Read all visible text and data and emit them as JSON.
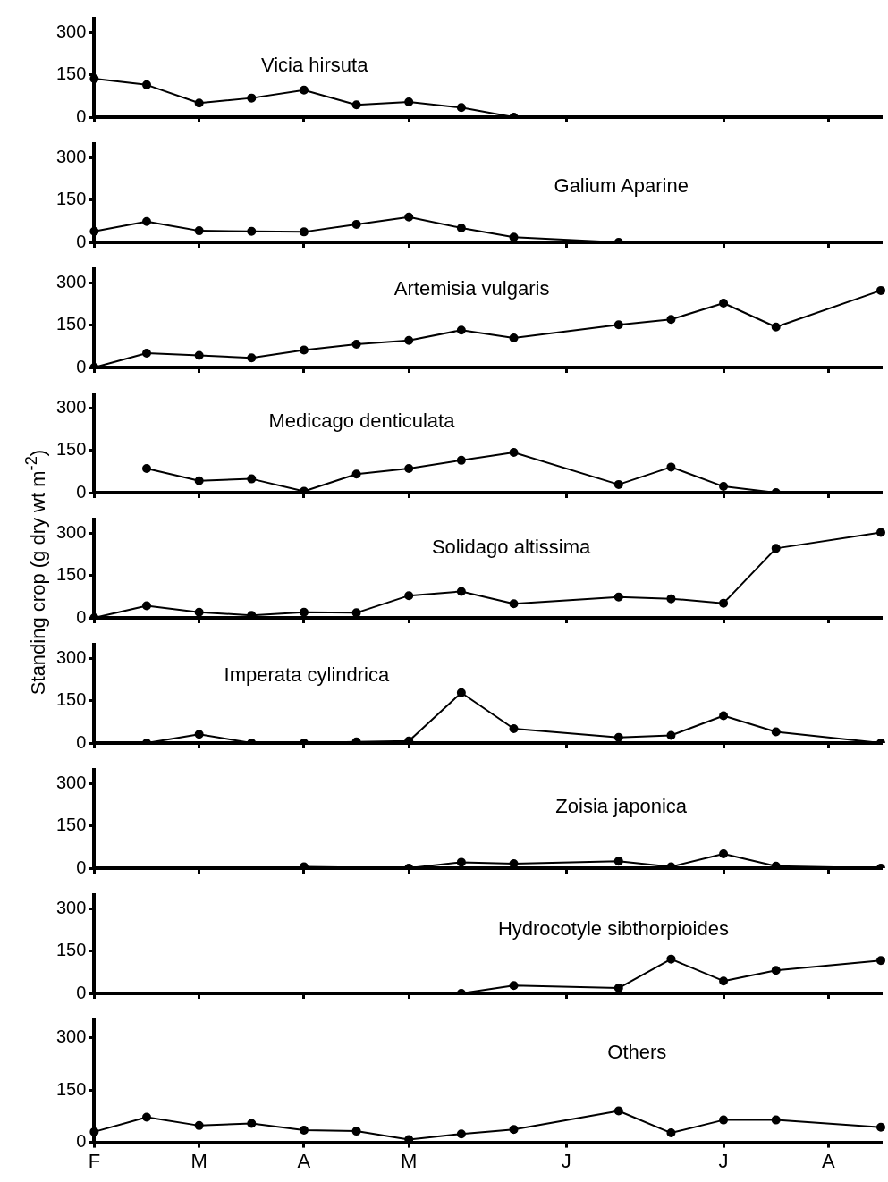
{
  "chart_data": [
    {
      "type": "line",
      "title": "Vicia hirsuta",
      "categories": [
        null,
        null,
        null,
        null,
        null,
        null,
        null,
        null,
        null,
        null,
        null,
        null,
        null,
        null,
        null,
        null
      ],
      "values": [
        137,
        115,
        50,
        68,
        96,
        44,
        54,
        34,
        0,
        null,
        null,
        null,
        null,
        null,
        null,
        null
      ],
      "color": "#000000",
      "marker": "circle",
      "ylim": [
        0,
        350
      ],
      "yticks": [
        0,
        150,
        300
      ],
      "tick_labels": "y"
    },
    {
      "type": "line",
      "title": "Galium Aparine",
      "categories": [
        null,
        null,
        null,
        null,
        null,
        null,
        null,
        null,
        null,
        null,
        null,
        null,
        null,
        null,
        null,
        null
      ],
      "values": [
        39,
        74,
        41,
        39,
        37,
        64,
        90,
        51,
        18,
        null,
        0,
        null,
        null,
        null,
        null,
        null
      ],
      "color": "#000000",
      "marker": "circle",
      "ylim": [
        0,
        350
      ],
      "yticks": [
        0,
        150,
        300
      ],
      "tick_labels": "y"
    },
    {
      "type": "line",
      "title": "Artemisia vulgaris",
      "categories": [
        null,
        null,
        null,
        null,
        null,
        null,
        null,
        null,
        null,
        null,
        null,
        null,
        null,
        null,
        null,
        null
      ],
      "values": [
        0,
        51,
        43,
        34,
        62,
        83,
        96,
        133,
        105,
        null,
        152,
        171,
        229,
        144,
        null,
        274
      ],
      "color": "#000000",
      "marker": "circle",
      "ylim": [
        0,
        350
      ],
      "yticks": [
        0,
        150,
        300
      ],
      "tick_labels": "y"
    },
    {
      "type": "line",
      "title": "Medicago denticulata",
      "categories": [
        null,
        null,
        null,
        null,
        null,
        null,
        null,
        null,
        null,
        null,
        null,
        null,
        null,
        null,
        null,
        null
      ],
      "values": [
        null,
        86,
        42,
        49,
        5,
        66,
        86,
        115,
        143,
        null,
        29,
        91,
        22,
        0,
        null,
        null
      ],
      "color": "#000000",
      "marker": "circle",
      "ylim": [
        0,
        350
      ],
      "yticks": [
        0,
        150,
        300
      ],
      "tick_labels": "y"
    },
    {
      "type": "line",
      "title": "Solidago altissima",
      "ylabel": "Standing crop   (g dry wt m$^{-2}$)",
      "categories": [
        null,
        null,
        null,
        null,
        null,
        null,
        null,
        null,
        null,
        null,
        null,
        null,
        null,
        null,
        null,
        null
      ],
      "values": [
        0,
        43,
        20,
        9,
        20,
        18,
        79,
        94,
        50,
        null,
        74,
        68,
        52,
        247,
        null,
        304
      ],
      "color": "#000000",
      "marker": "circle",
      "ylim": [
        0,
        350
      ],
      "yticks": [
        0,
        150,
        300
      ],
      "tick_labels": "y"
    },
    {
      "type": "line",
      "title": "Imperata cylindrica",
      "categories": [
        null,
        null,
        null,
        null,
        null,
        null,
        null,
        null,
        null,
        null,
        null,
        null,
        null,
        null,
        null,
        null
      ],
      "values": [
        null,
        0,
        31,
        0,
        0,
        4,
        7,
        179,
        51,
        null,
        20,
        27,
        97,
        40,
        null,
        0
      ],
      "color": "#000000",
      "marker": "circle",
      "ylim": [
        0,
        350
      ],
      "yticks": [
        0,
        150,
        300
      ],
      "tick_labels": "y"
    },
    {
      "type": "line",
      "title": "Zoisia japonica",
      "categories": [
        null,
        null,
        null,
        null,
        null,
        null,
        null,
        null,
        null,
        null,
        null,
        null,
        null,
        null,
        null,
        null
      ],
      "values": [
        null,
        null,
        null,
        null,
        5,
        null,
        0,
        21,
        16,
        null,
        25,
        5,
        51,
        7,
        null,
        0
      ],
      "color": "#000000",
      "marker": "circle",
      "ylim": [
        0,
        350
      ],
      "yticks": [
        0,
        150,
        300
      ],
      "tick_labels": "y"
    },
    {
      "type": "line",
      "title": "Hydrocotyle sibthorpioides",
      "categories": [
        null,
        null,
        null,
        null,
        null,
        null,
        null,
        null,
        null,
        null,
        null,
        null,
        null,
        null,
        null,
        null
      ],
      "values": [
        null,
        null,
        null,
        null,
        null,
        null,
        null,
        0,
        28,
        null,
        19,
        122,
        44,
        82,
        null,
        117
      ],
      "color": "#000000",
      "marker": "circle",
      "ylim": [
        0,
        350
      ],
      "yticks": [
        0,
        150,
        300
      ],
      "tick_labels": "y"
    },
    {
      "type": "line",
      "title": "Others",
      "categories": [
        "F",
        null,
        "M",
        null,
        "A",
        null,
        "M",
        null,
        null,
        "J",
        null,
        null,
        "J",
        null,
        "A",
        null
      ],
      "values": [
        30,
        72,
        48,
        54,
        35,
        32,
        8,
        24,
        37,
        null,
        90,
        27,
        64,
        64,
        null,
        43
      ],
      "color": "#000000",
      "marker": "circle",
      "ylim": [
        0,
        350
      ],
      "yticks": [
        0,
        150,
        300
      ]
    }
  ]
}
